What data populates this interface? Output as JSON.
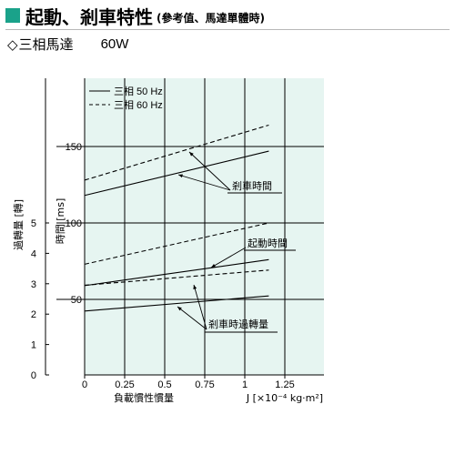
{
  "header": {
    "title": "起動、剎車特性",
    "subtitle": "(參考值、馬達單體時)",
    "square_color": "#1aa28a"
  },
  "subheading": {
    "symbol": "◇",
    "label": "三相馬達",
    "power": "60W"
  },
  "chart_data": {
    "type": "line",
    "background": "#e6f5f1",
    "grid": true,
    "xlabel": "負載慣性慣量",
    "xunit": "J [×10⁻⁴ kg·m²]",
    "xlim": [
      0,
      1.5
    ],
    "xticks": [
      0,
      0.25,
      0.5,
      0.75,
      1,
      1.25
    ],
    "xtick_labels": [
      "0",
      "0.25",
      "0.5",
      "0.75",
      "1",
      "1.25"
    ],
    "y_time": {
      "label": "時間 [ms]",
      "lim": [
        0,
        200
      ],
      "ticks": [
        50,
        100,
        150
      ],
      "tick_labels": [
        "50",
        "100",
        "150"
      ]
    },
    "y_overrun": {
      "label": "過轉量 [轉]",
      "lim": [
        0,
        6
      ],
      "ticks": [
        0,
        1,
        2,
        3,
        4,
        5
      ],
      "tick_labels": [
        "0",
        "1",
        "2",
        "3",
        "4",
        "5"
      ]
    },
    "legend": {
      "position": "top-left",
      "entries": [
        {
          "label": "三相 50 Hz",
          "style": "solid"
        },
        {
          "label": "三相 60 Hz",
          "style": "dashed"
        }
      ]
    },
    "series": [
      {
        "group": "剎車時間",
        "legend": "三相 50 Hz",
        "axis": "time",
        "style": "solid",
        "x": [
          0,
          1.15
        ],
        "y": [
          118,
          147
        ]
      },
      {
        "group": "剎車時間",
        "legend": "三相 60 Hz",
        "axis": "time",
        "style": "dashed",
        "x": [
          0,
          1.15
        ],
        "y": [
          128,
          164
        ]
      },
      {
        "group": "起動時間",
        "legend": "三相 50 Hz",
        "axis": "time",
        "style": "solid",
        "x": [
          0,
          1.15
        ],
        "y": [
          59,
          76
        ]
      },
      {
        "group": "起動時間",
        "legend": "三相 60 Hz",
        "axis": "time",
        "style": "dashed",
        "x": [
          0,
          1.15
        ],
        "y": [
          73,
          100
        ]
      },
      {
        "group": "剎車時過轉量",
        "legend": "三相 50 Hz",
        "axis": "overrun",
        "style": "solid",
        "x": [
          0,
          1.15
        ],
        "y": [
          2.1,
          2.6
        ]
      },
      {
        "group": "剎車時過轉量",
        "legend": "三相 60 Hz",
        "axis": "overrun",
        "style": "dashed",
        "x": [
          0,
          1.15
        ],
        "y": [
          2.95,
          3.45
        ]
      }
    ],
    "annotations": [
      {
        "text": "剎車時間",
        "group": "剎車時間"
      },
      {
        "text": "起動時間",
        "group": "起動時間"
      },
      {
        "text": "剎車時過轉量",
        "group": "剎車時過轉量"
      }
    ]
  }
}
